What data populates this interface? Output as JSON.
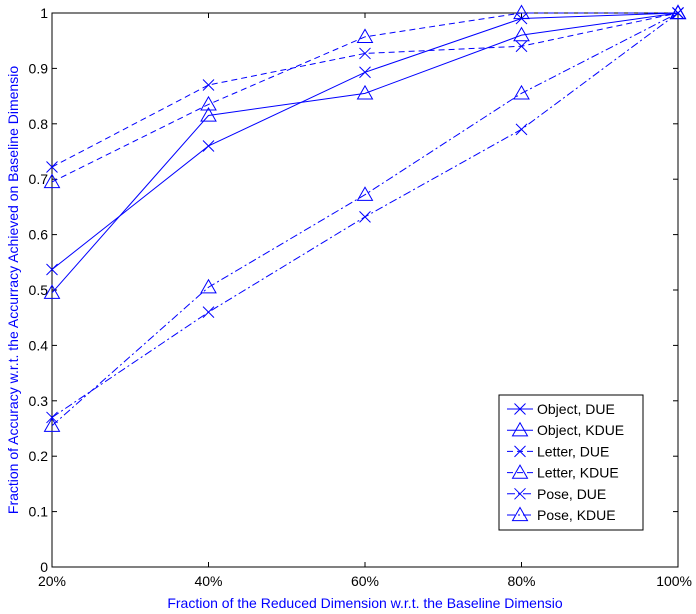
{
  "chart_data": {
    "type": "line",
    "title": "",
    "xlabel": "Fraction of the Reduced Dimension w.r.t. the Baseline Dimensio",
    "ylabel": "Fraction of Accuracy w.r.t. the Accurracy Achieved on Baseline Dimensio",
    "x": [
      20,
      40,
      60,
      80,
      100
    ],
    "x_tick_labels": [
      "20%",
      "40%",
      "60%",
      "80%",
      "100%"
    ],
    "y_ticks": [
      0,
      0.1,
      0.2,
      0.3,
      0.4,
      0.5,
      0.6,
      0.7,
      0.8,
      0.9,
      1
    ],
    "y_tick_labels": [
      "0",
      "0.1",
      "0.2",
      "0.3",
      "0.4",
      "0.5",
      "0.6",
      "0.7",
      "0.8",
      "0.9",
      "1"
    ],
    "xlim": [
      20,
      100
    ],
    "ylim": [
      0,
      1
    ],
    "grid": false,
    "legend_position": "bottom-right",
    "color": "#0000ff",
    "series": [
      {
        "name": "Object, DUE",
        "marker": "x",
        "linestyle": "solid",
        "values": [
          0.537,
          0.76,
          0.893,
          0.99,
          1.0
        ]
      },
      {
        "name": "Object, KDUE",
        "marker": "triangle",
        "linestyle": "solid",
        "values": [
          0.495,
          0.815,
          0.855,
          0.96,
          1.0
        ]
      },
      {
        "name": "Letter, DUE",
        "marker": "x",
        "linestyle": "dashed",
        "values": [
          0.722,
          0.87,
          0.927,
          0.94,
          1.0
        ]
      },
      {
        "name": "Letter, KDUE",
        "marker": "triangle",
        "linestyle": "dashed",
        "values": [
          0.695,
          0.835,
          0.957,
          1.0,
          1.0
        ]
      },
      {
        "name": "Pose, DUE",
        "marker": "x",
        "linestyle": "dashdot",
        "values": [
          0.27,
          0.46,
          0.632,
          0.79,
          1.0
        ]
      },
      {
        "name": "Pose, KDUE",
        "marker": "triangle",
        "linestyle": "dashdot",
        "values": [
          0.255,
          0.505,
          0.672,
          0.855,
          1.0
        ]
      }
    ]
  }
}
